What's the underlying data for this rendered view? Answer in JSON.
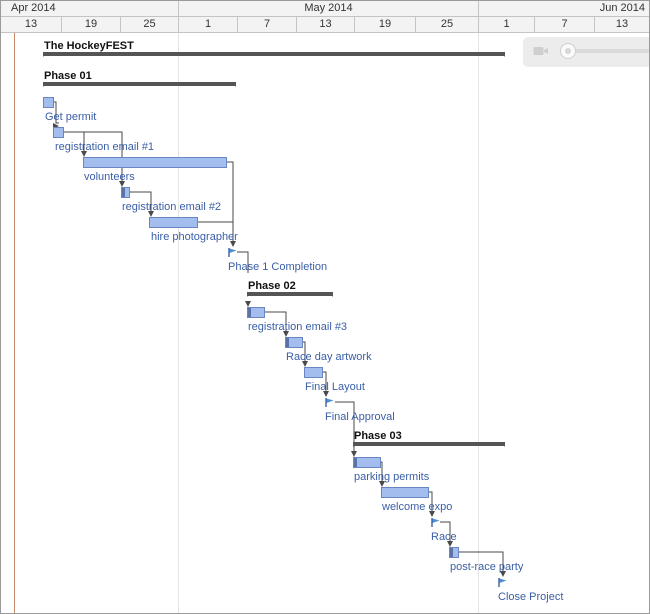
{
  "header": {
    "months": [
      "Apr 2014",
      "May 2014",
      "Jun 2014"
    ],
    "days": [
      "13",
      "19",
      "25",
      "1",
      "7",
      "13",
      "19",
      "25",
      "1",
      "7",
      "13"
    ]
  },
  "project": {
    "name": "The HockeyFEST"
  },
  "phases": [
    {
      "name": "Phase 01"
    },
    {
      "name": "Phase 02"
    },
    {
      "name": "Phase 03"
    }
  ],
  "tasks": [
    {
      "label": "Get permit"
    },
    {
      "label": "registration email #1"
    },
    {
      "label": "volunteers"
    },
    {
      "label": "registration email #2"
    },
    {
      "label": "hire photographer"
    },
    {
      "label": "Phase 1 Completion"
    },
    {
      "label": "registration email #3"
    },
    {
      "label": "Race day artwork"
    },
    {
      "label": "Final Layout"
    },
    {
      "label": "Final Approval"
    },
    {
      "label": "parking permits"
    },
    {
      "label": "welcome expo"
    },
    {
      "label": "Race"
    },
    {
      "label": "post-race party"
    },
    {
      "label": "Close Project"
    }
  ],
  "colors": {
    "task_bar": "#a3bdee",
    "task_border": "#6a86c0",
    "label_text": "#3a5ea6",
    "summary_bar": "#555555",
    "milestone": "#4f8fd0",
    "today_line": "#c98a6a"
  }
}
